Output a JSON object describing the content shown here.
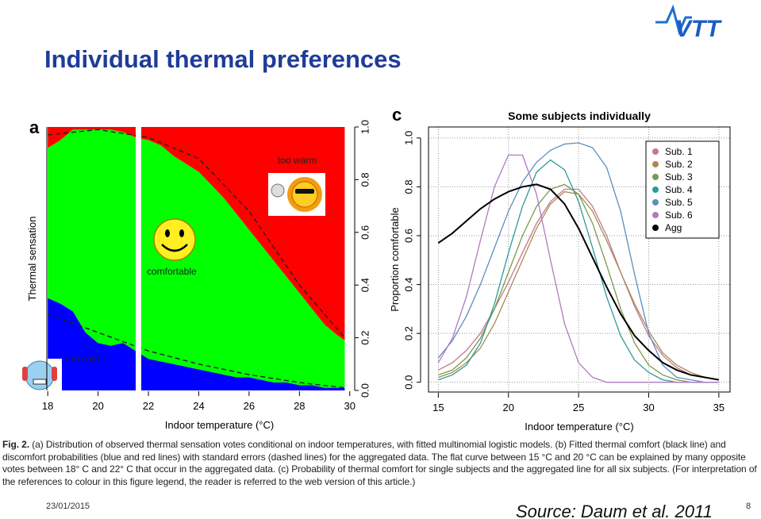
{
  "header": {
    "title": "Individual thermal preferences",
    "logo": "VTT"
  },
  "chart_data": [
    {
      "type": "area",
      "stacked": true,
      "panel_label": "a",
      "x_label": "Indoor temperature (°C)",
      "y_label": "Thermal sensation",
      "x": [
        18,
        18.5,
        19,
        19.5,
        20,
        20.5,
        21,
        21.5,
        22,
        22.5,
        23,
        23.5,
        24,
        24.5,
        25,
        25.5,
        26,
        26.5,
        27,
        27.5,
        28,
        28.5,
        29,
        29.5,
        29.8
      ],
      "series": [
        {
          "name": "too cold",
          "color": "#0000ff",
          "values": [
            0.35,
            0.33,
            0.3,
            0.22,
            0.18,
            0.17,
            0.18,
            0.15,
            0.12,
            0.11,
            0.1,
            0.09,
            0.08,
            0.07,
            0.06,
            0.05,
            0.05,
            0.04,
            0.03,
            0.03,
            0.02,
            0.02,
            0.01,
            0.01,
            0.01
          ]
        },
        {
          "name": "comfortable",
          "color": "#00ff00",
          "values": [
            0.57,
            0.62,
            0.69,
            0.77,
            0.81,
            0.82,
            0.8,
            0.81,
            0.83,
            0.82,
            0.79,
            0.77,
            0.75,
            0.71,
            0.67,
            0.62,
            0.56,
            0.51,
            0.46,
            0.4,
            0.35,
            0.29,
            0.24,
            0.2,
            0.18
          ]
        },
        {
          "name": "too warm",
          "color": "#ff0000",
          "values": [
            0.08,
            0.05,
            0.01,
            0.01,
            0.01,
            0.01,
            0.02,
            0.04,
            0.05,
            0.07,
            0.11,
            0.14,
            0.17,
            0.22,
            0.27,
            0.33,
            0.39,
            0.45,
            0.51,
            0.57,
            0.63,
            0.69,
            0.75,
            0.79,
            0.81
          ]
        }
      ],
      "fits": {
        "x": [
          18,
          20,
          22,
          24,
          26,
          28,
          29.8
        ],
        "lower": [
          0.29,
          0.22,
          0.15,
          0.1,
          0.06,
          0.03,
          0.01
        ],
        "upper": [
          0.97,
          0.99,
          0.96,
          0.88,
          0.68,
          0.4,
          0.2
        ]
      },
      "xlim": [
        17.9,
        29.85
      ],
      "ylim": [
        0,
        1
      ],
      "xticks": [
        18,
        20,
        22,
        24,
        26,
        28,
        30
      ],
      "yticks": [
        {
          "value": 0,
          "label": "0.0"
        },
        0.2,
        0.4,
        0.6,
        0.8,
        {
          "value": 1,
          "label": "1.0"
        }
      ]
    },
    {
      "type": "line",
      "panel_label": "c",
      "title": "Some subjects individually",
      "x_label": "Indoor temperature (°C)",
      "y_label": "Proportion comfortable",
      "x": [
        15,
        16,
        17,
        18,
        19,
        20,
        21,
        22,
        23,
        24,
        25,
        26,
        27,
        28,
        29,
        30,
        31,
        32,
        33,
        34,
        35
      ],
      "series": [
        {
          "name": "Sub. 1",
          "color": "#c4788a",
          "values": [
            0.05,
            0.08,
            0.13,
            0.2,
            0.3,
            0.41,
            0.53,
            0.65,
            0.74,
            0.79,
            0.79,
            0.72,
            0.6,
            0.45,
            0.31,
            0.19,
            0.11,
            0.06,
            0.03,
            0.02,
            0.01
          ]
        },
        {
          "name": "Sub. 2",
          "color": "#a88a56",
          "values": [
            0.02,
            0.04,
            0.08,
            0.14,
            0.24,
            0.37,
            0.5,
            0.63,
            0.73,
            0.78,
            0.77,
            0.7,
            0.58,
            0.45,
            0.32,
            0.21,
            0.12,
            0.07,
            0.04,
            0.02,
            0.01
          ]
        },
        {
          "name": "Sub. 3",
          "color": "#7a9a4a",
          "values": [
            0.03,
            0.05,
            0.1,
            0.18,
            0.3,
            0.45,
            0.6,
            0.72,
            0.79,
            0.81,
            0.77,
            0.65,
            0.48,
            0.3,
            0.16,
            0.07,
            0.03,
            0.01,
            0,
            0,
            0
          ]
        },
        {
          "name": "Sub. 4",
          "color": "#2e9a9a",
          "values": [
            0.01,
            0.03,
            0.07,
            0.16,
            0.32,
            0.53,
            0.72,
            0.86,
            0.91,
            0.87,
            0.74,
            0.55,
            0.35,
            0.19,
            0.09,
            0.04,
            0.01,
            0,
            0,
            0,
            0
          ]
        },
        {
          "name": "Sub. 5",
          "color": "#5a8fc0",
          "values": [
            0.1,
            0.17,
            0.27,
            0.4,
            0.55,
            0.7,
            0.82,
            0.9,
            0.95,
            0.975,
            0.98,
            0.96,
            0.88,
            0.7,
            0.44,
            0.2,
            0.07,
            0.02,
            0.01,
            0,
            0
          ]
        },
        {
          "name": "Sub. 6",
          "color": "#b07ac0",
          "values": [
            0.08,
            0.18,
            0.35,
            0.58,
            0.8,
            0.93,
            0.93,
            0.77,
            0.5,
            0.24,
            0.08,
            0.02,
            0,
            0,
            0,
            0,
            0,
            0,
            0,
            0,
            0
          ]
        },
        {
          "name": "Agg",
          "color": "#000000",
          "values": [
            0.57,
            0.61,
            0.66,
            0.71,
            0.75,
            0.78,
            0.8,
            0.81,
            0.79,
            0.73,
            0.63,
            0.51,
            0.39,
            0.28,
            0.19,
            0.13,
            0.08,
            0.05,
            0.03,
            0.02,
            0.01
          ]
        }
      ],
      "xlim": [
        14.3,
        35.8
      ],
      "ylim": [
        -0.04,
        1.045
      ],
      "xticks": [
        15,
        20,
        25,
        30,
        35
      ],
      "yticks": [
        {
          "value": 0,
          "label": "0.0"
        },
        0.2,
        0.4,
        0.6,
        0.8,
        {
          "value": 1,
          "label": "1.0"
        }
      ],
      "grid": true,
      "legend": "top-right"
    }
  ],
  "caption": {
    "label": "Fig. 2.",
    "text": "(a) Distribution of observed thermal sensation votes conditional on indoor temperatures, with fitted multinomial logistic models. (b) Fitted thermal comfort (black line) and discomfort probabilities (blue and red lines) with standard errors (dashed lines) for the aggregated data. The flat curve between 15 °C and 20 °C can be explained by many opposite votes between 18° C and 22° C that occur in the aggregated data. (c) Probability of thermal comfort for single subjects and the aggregated line for all six subjects. (For interpretation of the references to colour in this figure legend, the reader is referred to the web version of this article.)"
  },
  "footer": {
    "date": "23/01/2015",
    "page": "8",
    "source": "Source: Daum et al. 2011"
  }
}
